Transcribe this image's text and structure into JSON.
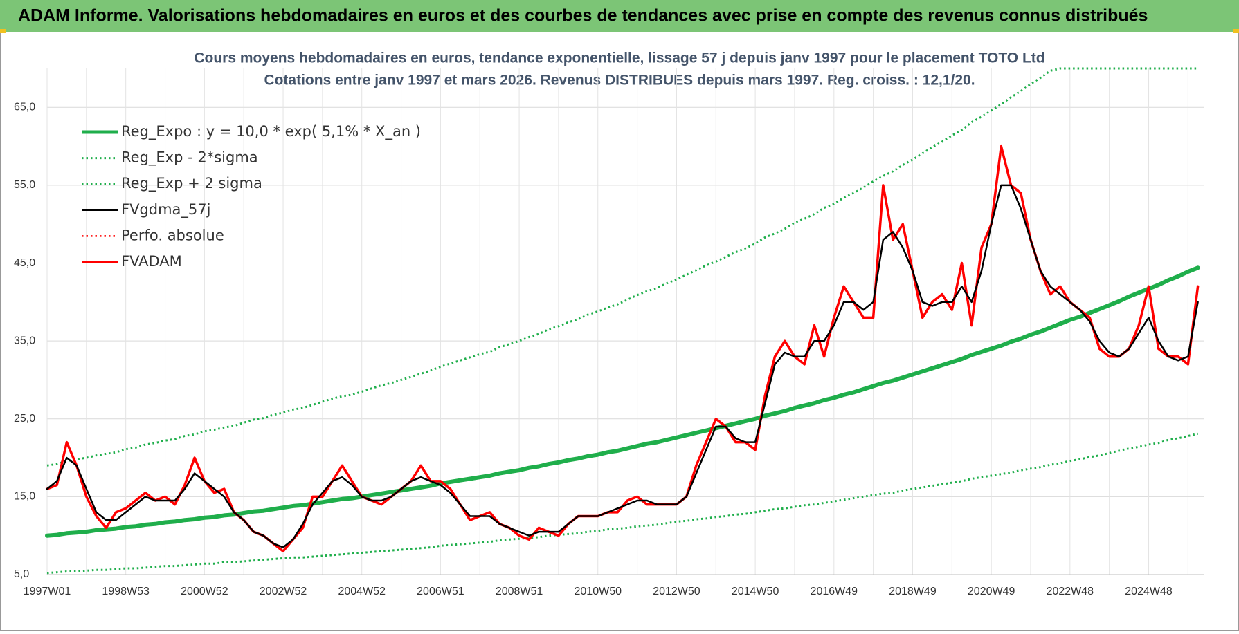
{
  "header": {
    "title": "ADAM Informe. Valorisations hebdomadaires en euros et des courbes de tendances avec prise en compte des revenus connus distribués"
  },
  "chart_data": {
    "type": "line",
    "title": "Cours moyens hebdomadaires en euros, tendance exponentielle, lissage 57 j depuis janv 1997  pour le placement TOTO Ltd",
    "subtitle": "Cotations entre janv 1997 et mars 2026. Revenus DISTRIBUES depuis mars 1997. Reg. croiss. : 12,1/20.",
    "categories": [
      "1997W01",
      null,
      null,
      null,
      null,
      null,
      null,
      null,
      "1998W53",
      null,
      null,
      null,
      null,
      null,
      null,
      null,
      "2000W52",
      null,
      null,
      null,
      null,
      null,
      null,
      null,
      "2002W52",
      null,
      null,
      null,
      null,
      null,
      null,
      null,
      "2004W52",
      null,
      null,
      null,
      null,
      null,
      null,
      null,
      "2006W51",
      null,
      null,
      null,
      null,
      null,
      null,
      null,
      "2008W51",
      null,
      null,
      null,
      null,
      null,
      null,
      null,
      "2010W50",
      null,
      null,
      null,
      null,
      null,
      null,
      null,
      "2012W50",
      null,
      null,
      null,
      null,
      null,
      null,
      null,
      "2014W50",
      null,
      null,
      null,
      null,
      null,
      null,
      null,
      "2016W49",
      null,
      null,
      null,
      null,
      null,
      null,
      null,
      "2018W49",
      null,
      null,
      null,
      null,
      null,
      null,
      null,
      "2020W49",
      null,
      null,
      null,
      null,
      null,
      null,
      null,
      "2022W48",
      null,
      null,
      null,
      null,
      null,
      null,
      null,
      "2024W48",
      null,
      null,
      null,
      null,
      null
    ],
    "series": [
      {
        "name": "Reg_Expo : y = 10,0 * exp( 5,1% *  X_an )",
        "color": "#1fae4b",
        "line_style": "solid",
        "values": [
          10.0,
          10.1,
          10.3,
          10.4,
          10.5,
          10.7,
          10.8,
          10.9,
          11.1,
          11.2,
          11.4,
          11.5,
          11.7,
          11.8,
          12.0,
          12.1,
          12.3,
          12.4,
          12.6,
          12.7,
          12.9,
          13.1,
          13.2,
          13.4,
          13.6,
          13.8,
          13.9,
          14.1,
          14.3,
          14.5,
          14.7,
          14.8,
          15.0,
          15.2,
          15.4,
          15.6,
          15.8,
          16.0,
          16.2,
          16.4,
          16.7,
          16.9,
          17.1,
          17.3,
          17.5,
          17.7,
          18.0,
          18.2,
          18.4,
          18.7,
          18.9,
          19.2,
          19.4,
          19.7,
          19.9,
          20.2,
          20.4,
          20.7,
          20.9,
          21.2,
          21.5,
          21.8,
          22.0,
          22.3,
          22.6,
          22.9,
          23.2,
          23.5,
          23.8,
          24.1,
          24.4,
          24.7,
          25.0,
          25.4,
          25.7,
          26.0,
          26.4,
          26.7,
          27.0,
          27.4,
          27.7,
          28.1,
          28.4,
          28.8,
          29.2,
          29.6,
          29.9,
          30.3,
          30.7,
          31.1,
          31.5,
          31.9,
          32.3,
          32.7,
          33.2,
          33.6,
          34.0,
          34.4,
          34.9,
          35.3,
          35.8,
          36.2,
          36.7,
          37.2,
          37.7,
          38.1,
          38.6,
          39.1,
          39.6,
          40.1,
          40.7,
          41.2,
          41.7,
          42.2,
          42.8,
          43.3,
          43.9,
          44.4
        ]
      },
      {
        "name": "Reg_Exp - 2*sigma",
        "color": "#1fae4b",
        "line_style": "dotted",
        "values": [
          5.2,
          5.3,
          5.4,
          5.4,
          5.5,
          5.6,
          5.6,
          5.7,
          5.8,
          5.8,
          5.9,
          6.0,
          6.1,
          6.1,
          6.2,
          6.3,
          6.4,
          6.4,
          6.6,
          6.6,
          6.7,
          6.8,
          6.9,
          7.0,
          7.1,
          7.2,
          7.2,
          7.3,
          7.4,
          7.5,
          7.6,
          7.7,
          7.8,
          7.9,
          8.0,
          8.1,
          8.2,
          8.3,
          8.4,
          8.5,
          8.7,
          8.8,
          8.9,
          9.0,
          9.1,
          9.2,
          9.4,
          9.5,
          9.6,
          9.7,
          9.8,
          10.0,
          10.1,
          10.2,
          10.3,
          10.5,
          10.6,
          10.8,
          10.9,
          11.0,
          11.2,
          11.3,
          11.4,
          11.6,
          11.8,
          11.9,
          12.1,
          12.2,
          12.4,
          12.5,
          12.7,
          12.8,
          13.0,
          13.2,
          13.4,
          13.5,
          13.7,
          13.9,
          14.0,
          14.2,
          14.4,
          14.6,
          14.8,
          15.0,
          15.2,
          15.4,
          15.5,
          15.8,
          16.0,
          16.2,
          16.4,
          16.6,
          16.8,
          17.0,
          17.3,
          17.5,
          17.7,
          17.9,
          18.1,
          18.4,
          18.6,
          18.8,
          19.1,
          19.3,
          19.6,
          19.8,
          20.1,
          20.3,
          20.6,
          20.9,
          21.2,
          21.4,
          21.7,
          21.9,
          22.3,
          22.5,
          22.8,
          23.1
        ]
      },
      {
        "name": "Reg_Exp + 2 sigma",
        "color": "#1fae4b",
        "line_style": "dotted",
        "values": [
          19.0,
          19.2,
          19.6,
          19.8,
          20.0,
          20.3,
          20.5,
          20.7,
          21.1,
          21.3,
          21.7,
          21.9,
          22.2,
          22.4,
          22.8,
          23.0,
          23.4,
          23.6,
          23.9,
          24.1,
          24.5,
          24.9,
          25.1,
          25.5,
          25.8,
          26.2,
          26.4,
          26.8,
          27.2,
          27.6,
          27.9,
          28.1,
          28.5,
          28.9,
          29.3,
          29.6,
          30.0,
          30.4,
          30.8,
          31.2,
          31.7,
          32.1,
          32.5,
          32.9,
          33.3,
          33.6,
          34.2,
          34.6,
          35.0,
          35.5,
          35.9,
          36.5,
          36.9,
          37.4,
          37.8,
          38.4,
          38.8,
          39.3,
          39.7,
          40.3,
          40.9,
          41.4,
          41.8,
          42.4,
          42.9,
          43.5,
          44.1,
          44.7,
          45.2,
          45.8,
          46.4,
          46.9,
          47.5,
          48.3,
          48.8,
          49.4,
          50.2,
          50.7,
          51.3,
          52.1,
          52.6,
          53.4,
          54.0,
          54.7,
          55.5,
          56.2,
          56.8,
          57.6,
          58.3,
          59.1,
          59.9,
          60.6,
          61.4,
          62.1,
          63.1,
          63.8,
          64.6,
          65.4,
          66.3,
          67.1,
          68.0,
          68.8,
          69.7,
          70,
          70,
          70,
          70,
          70,
          70,
          70,
          70,
          70,
          70,
          70,
          70,
          70,
          70,
          70
        ]
      },
      {
        "name": "FVgdma_57j",
        "color": "#000000",
        "line_style": "solid",
        "values": [
          16,
          17,
          20,
          19,
          16,
          13,
          12,
          12,
          13,
          14,
          15,
          14.5,
          14.5,
          14.5,
          16,
          18,
          17,
          16,
          15,
          13,
          12,
          10.5,
          10,
          9,
          8.5,
          9.5,
          11.5,
          14,
          15.5,
          17,
          17.5,
          16.5,
          15,
          14.5,
          14.5,
          15,
          16,
          17,
          17.5,
          17,
          16.5,
          15.5,
          14,
          12.5,
          12.5,
          12.5,
          11.5,
          11,
          10.5,
          10,
          10.5,
          10.5,
          10.5,
          11.5,
          12.5,
          12.5,
          12.5,
          13,
          13.5,
          14,
          14.5,
          14.5,
          14,
          14,
          14,
          15,
          18,
          21,
          24,
          24,
          22.5,
          22,
          22,
          27,
          32,
          33.5,
          33,
          33,
          35,
          35,
          37,
          40,
          40,
          39,
          40,
          48,
          49,
          47,
          44,
          40,
          39.5,
          40,
          40,
          42,
          40,
          44,
          50,
          55,
          55,
          52,
          48,
          44,
          42,
          41,
          40,
          39,
          37.5,
          35,
          33.5,
          33,
          34,
          36,
          38,
          35,
          33,
          32.5,
          33,
          40
        ]
      },
      {
        "name": "Perfo. absolue",
        "color": "#ff0000",
        "line_style": "dotted",
        "values": [
          null,
          null,
          null,
          null,
          null,
          null,
          null,
          null,
          null,
          null,
          null,
          null,
          null,
          null,
          null,
          null,
          null,
          null,
          null,
          null,
          null,
          null,
          null,
          null,
          null,
          null,
          null,
          null,
          null,
          null,
          null,
          null,
          null,
          null,
          null,
          null,
          null,
          null,
          null,
          null,
          null,
          null,
          null,
          null,
          null,
          null,
          null,
          null,
          null,
          null,
          null,
          null,
          null,
          null,
          null,
          null,
          null,
          null,
          null,
          null,
          null,
          null,
          null,
          null,
          null,
          null,
          null,
          null,
          null,
          null,
          null,
          null,
          null,
          null,
          null,
          null,
          null,
          null,
          null,
          null,
          null,
          null,
          null,
          null,
          null,
          null,
          null,
          null,
          null,
          null,
          null,
          null,
          null,
          null,
          null,
          null,
          null,
          null,
          null,
          null,
          null,
          null,
          null,
          null,
          null,
          null,
          null,
          null,
          null,
          null,
          null,
          null,
          null,
          null,
          null,
          null,
          null,
          null
        ]
      },
      {
        "name": "FVADAM",
        "color": "#ff0000",
        "line_style": "solid",
        "values": [
          16,
          16.5,
          22,
          19,
          15,
          12.5,
          11,
          13,
          13.5,
          14.5,
          15.5,
          14.5,
          15,
          14,
          16.5,
          20,
          17,
          15.5,
          16,
          13,
          12,
          10.5,
          10,
          9,
          8,
          9.5,
          11,
          15,
          15,
          17,
          19,
          17,
          15,
          14.5,
          14,
          15,
          16,
          17,
          19,
          17,
          17,
          16,
          14,
          12,
          12.5,
          13,
          11.5,
          11,
          10,
          9.5,
          11,
          10.5,
          10,
          11.5,
          12.5,
          12.5,
          12.5,
          13,
          13,
          14.5,
          15,
          14,
          14,
          14,
          14,
          15,
          19,
          22,
          25,
          24,
          22,
          22,
          21,
          28,
          33,
          35,
          33,
          32,
          37,
          33,
          38,
          42,
          40,
          38,
          38,
          55,
          48,
          50,
          44,
          38,
          40,
          41,
          39,
          45,
          37,
          47,
          50,
          60,
          55,
          54,
          48,
          44,
          41,
          42,
          40,
          39,
          38,
          34,
          33,
          33,
          34,
          37,
          42,
          34,
          33,
          33,
          32,
          42
        ]
      }
    ],
    "ylim": [
      5,
      70
    ],
    "yticks": [
      {
        "value": 5,
        "label": "5,0"
      },
      {
        "value": 15,
        "label": "15,0"
      },
      {
        "value": 25,
        "label": "25,0"
      },
      {
        "value": 35,
        "label": "35,0"
      },
      {
        "value": 45,
        "label": "45,0"
      },
      {
        "value": 55,
        "label": "55,0"
      },
      {
        "value": 65,
        "label": "65,0"
      }
    ],
    "grid": true,
    "legend": "upper left"
  }
}
